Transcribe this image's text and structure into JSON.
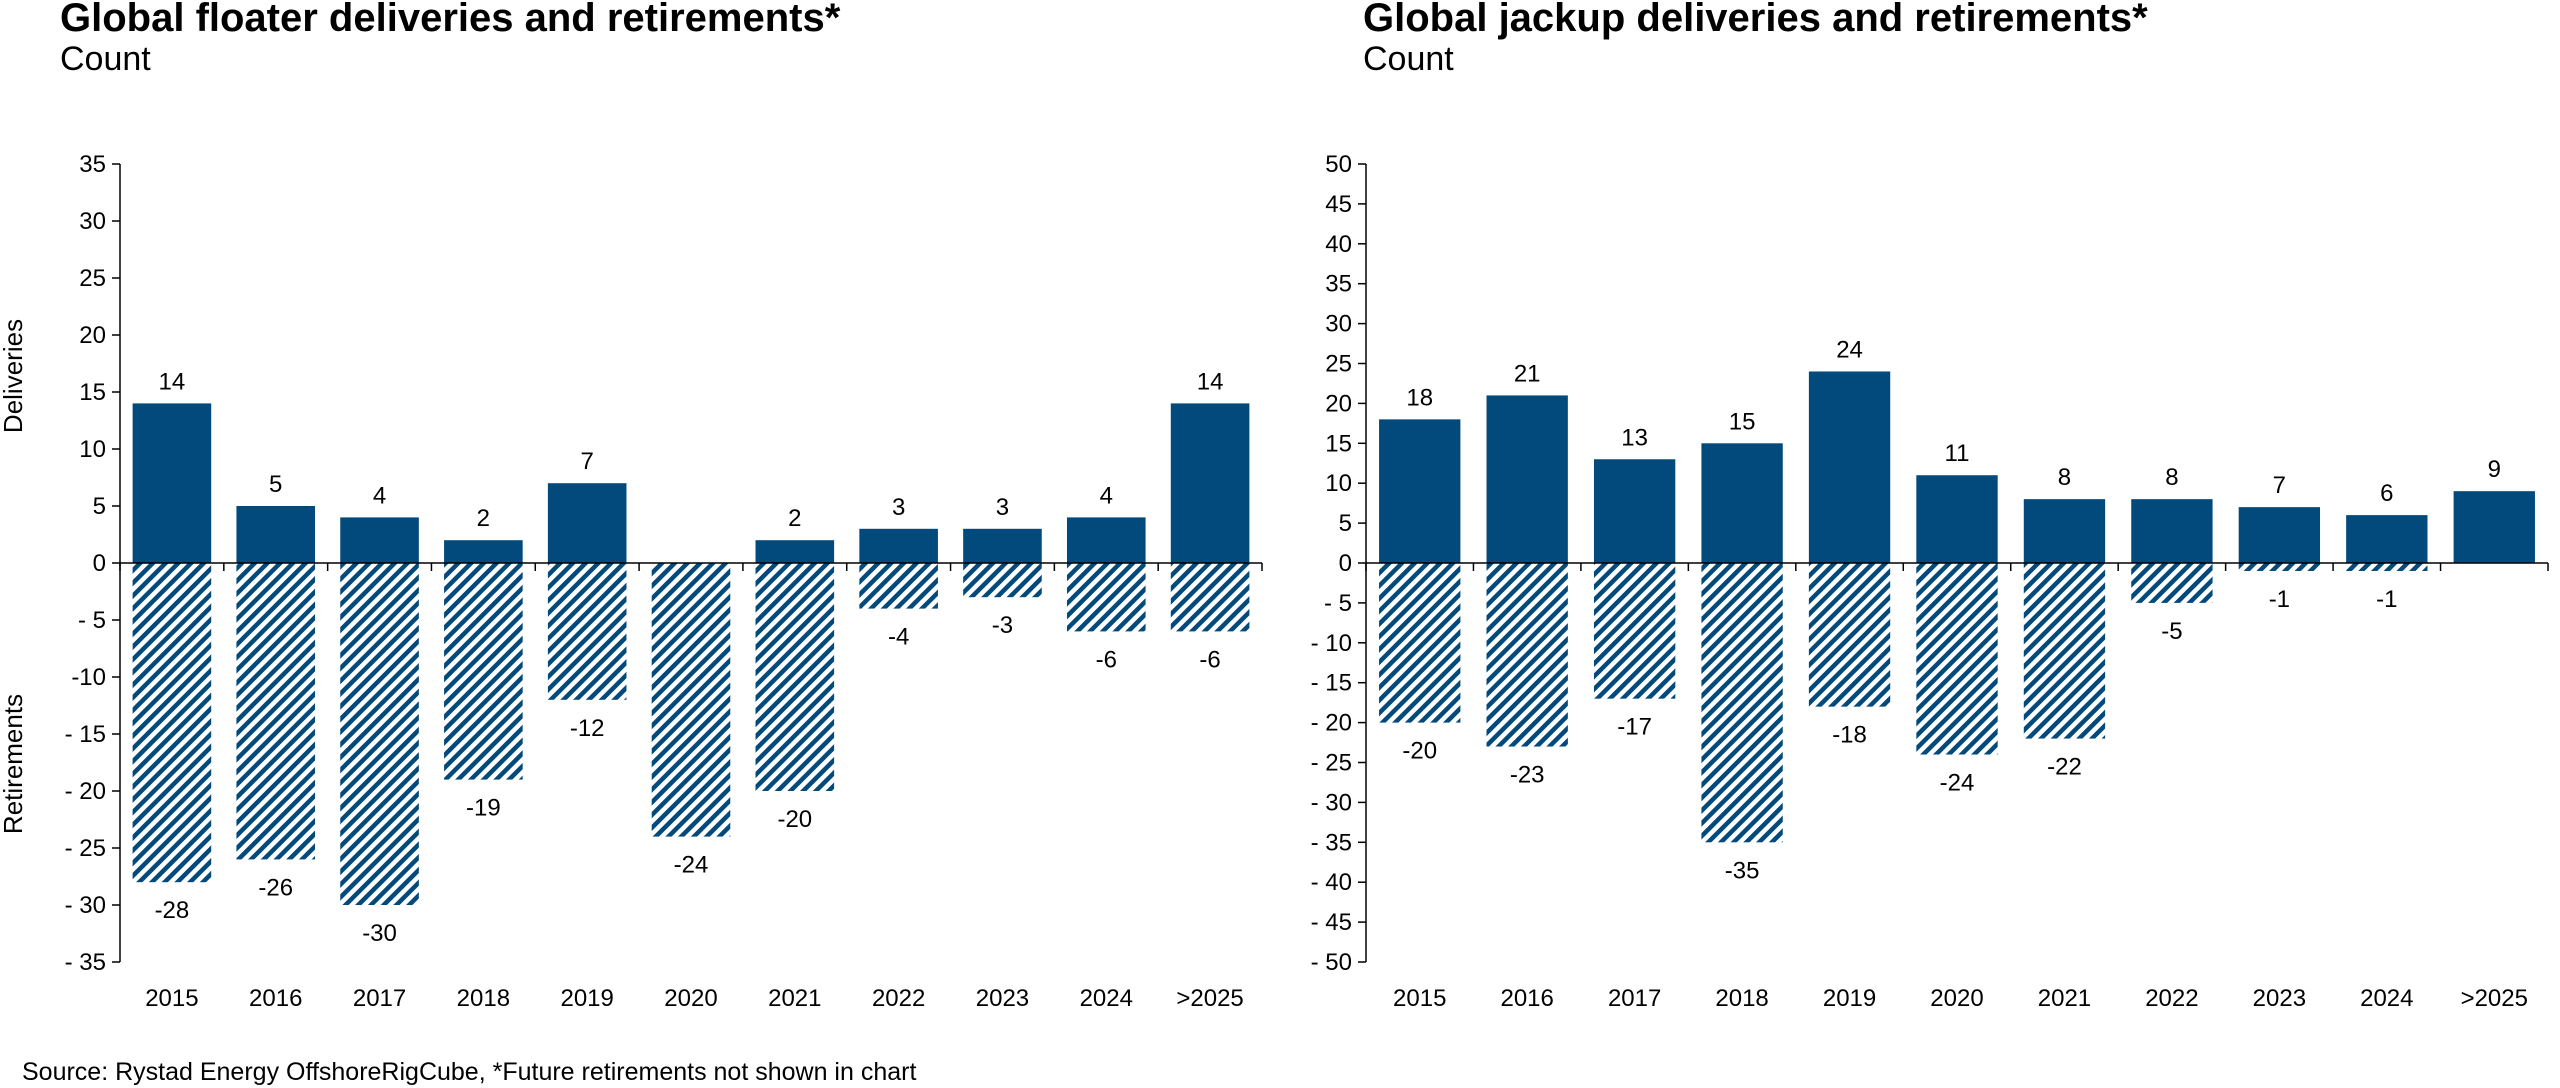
{
  "source": "Source:  Rystad Energy OffshoreRigCube, *Future retirements not shown in chart",
  "colors": {
    "bar": "#024a7c",
    "hatch": "#024a7c",
    "axis": "#000000"
  },
  "chart_data": [
    {
      "type": "bar",
      "title": "Global floater deliveries and retirements*",
      "subtitle": "Count",
      "ylabel_top": "Deliveries",
      "ylabel_bottom": "Retirements",
      "categories": [
        "2015",
        "2016",
        "2017",
        "2018",
        "2019",
        "2020",
        "2021",
        "2022",
        "2023",
        "2024",
        ">2025"
      ],
      "series": [
        {
          "values": [
            14,
            5,
            4,
            2,
            7,
            0,
            2,
            3,
            3,
            4,
            14
          ]
        },
        {
          "values": [
            -28,
            -26,
            -30,
            -19,
            -12,
            -24,
            -20,
            -4,
            -3,
            -6,
            -6
          ]
        }
      ],
      "data_labels_deliveries": [
        "14",
        "5",
        "4",
        "2",
        "7",
        "",
        "2",
        "3",
        "3",
        "4",
        "14"
      ],
      "data_labels_retirements": [
        "-28",
        "-26",
        "-30",
        "-19",
        "-12",
        "-24",
        "-20",
        "-4",
        "-3",
        "-6",
        "-6"
      ],
      "ylim": [
        -35,
        35
      ],
      "yticks": [
        35,
        30,
        25,
        20,
        15,
        10,
        5,
        0,
        -5,
        -10,
        -15,
        -20,
        -25,
        -30,
        -35
      ],
      "ytick_labels": [
        "35",
        "30",
        "25",
        "20",
        "15",
        "10",
        "5",
        "0",
        "- 5",
        "-10",
        "- 15",
        "- 20",
        "- 25",
        "- 30",
        "- 35"
      ],
      "grid": false,
      "legend": "none"
    },
    {
      "type": "bar",
      "title": "Global jackup deliveries and retirements*",
      "subtitle": "Count",
      "categories": [
        "2015",
        "2016",
        "2017",
        "2018",
        "2019",
        "2020",
        "2021",
        "2022",
        "2023",
        "2024",
        ">2025"
      ],
      "series": [
        {
          "values": [
            18,
            21,
            13,
            15,
            24,
            11,
            8,
            8,
            7,
            6,
            9
          ]
        },
        {
          "values": [
            -20,
            -23,
            -17,
            -35,
            -18,
            -24,
            -22,
            -5,
            -1,
            -1,
            0
          ]
        }
      ],
      "data_labels_deliveries": [
        "18",
        "21",
        "13",
        "15",
        "24",
        "11",
        "8",
        "8",
        "7",
        "6",
        "9"
      ],
      "data_labels_retirements": [
        "-20",
        "-23",
        "-17",
        "-35",
        "-18",
        "-24",
        "-22",
        "-5",
        "-1",
        "-1",
        ""
      ],
      "ylim": [
        -50,
        50
      ],
      "yticks": [
        50,
        45,
        40,
        35,
        30,
        25,
        20,
        15,
        10,
        5,
        0,
        -5,
        -10,
        -15,
        -20,
        -25,
        -30,
        -35,
        -40,
        -45,
        -50
      ],
      "ytick_labels": [
        "50",
        "45",
        "40",
        "35",
        "30",
        "25",
        "20",
        "15",
        "10",
        "5",
        "0",
        "- 5",
        "- 10",
        "- 15",
        "- 20",
        "- 25",
        "- 30",
        "- 35",
        "- 40",
        "- 45",
        "- 50"
      ],
      "grid": false,
      "legend": "none"
    }
  ]
}
